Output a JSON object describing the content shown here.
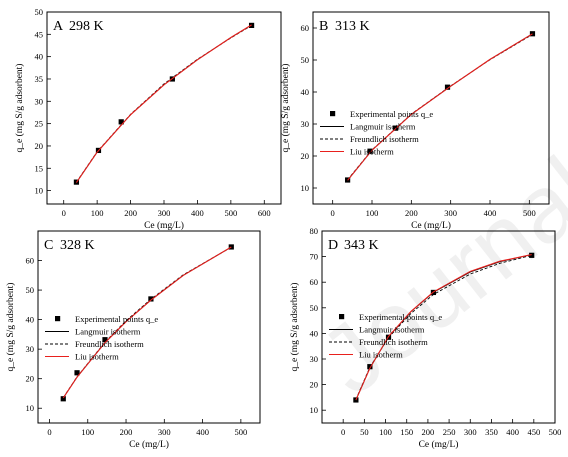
{
  "watermark": "Journal Pre-proof",
  "colors": {
    "experimental": "#000000",
    "langmuir": "#000000",
    "freundlich": "#000000",
    "liu": "#e8201d"
  },
  "chart_data": [
    {
      "type": "scatter",
      "panel_label": "A",
      "title": "298 K",
      "xlabel": "Ce (mg/L)",
      "ylabel": "q_e (mg S/g adsorbent)",
      "xlim": [
        -50,
        650
      ],
      "ylim": [
        7,
        50
      ],
      "xticks": [
        0,
        100,
        200,
        300,
        400,
        500,
        600
      ],
      "yticks": [
        10,
        15,
        20,
        25,
        30,
        35,
        40,
        45,
        50
      ],
      "legend": "none",
      "series": [
        {
          "name": "Experimental points q_e",
          "style": "points",
          "x": [
            38,
            104,
            172,
            325,
            562
          ],
          "y": [
            11.9,
            19.0,
            25.4,
            35.0,
            47.0
          ]
        },
        {
          "name": "Langmuir isotherm",
          "style": "solid",
          "x": [
            38,
            100,
            200,
            300,
            400,
            500,
            562
          ],
          "y": [
            11.8,
            18.6,
            27.0,
            33.7,
            39.3,
            44.3,
            47.1
          ]
        },
        {
          "name": "Freundlich isotherm",
          "style": "dashed",
          "x": [
            38,
            100,
            200,
            300,
            400,
            500,
            562
          ],
          "y": [
            11.9,
            18.7,
            27.1,
            33.9,
            39.4,
            44.2,
            47.0
          ]
        },
        {
          "name": "Liu isotherm",
          "style": "red",
          "x": [
            38,
            100,
            200,
            300,
            400,
            500,
            562
          ],
          "y": [
            11.8,
            18.6,
            27.0,
            33.7,
            39.3,
            44.3,
            47.1
          ]
        }
      ]
    },
    {
      "type": "scatter",
      "panel_label": "B",
      "title": "313 K",
      "xlabel": "Ce (mg/L)",
      "ylabel": "q_e (mg S/g adsorbent)",
      "xlim": [
        -50,
        550
      ],
      "ylim": [
        5,
        65
      ],
      "xticks": [
        0,
        100,
        200,
        300,
        400,
        500
      ],
      "yticks": [
        10,
        20,
        30,
        40,
        50,
        60
      ],
      "legend": "middle",
      "series": [
        {
          "name": "Experimental points q_e",
          "style": "points",
          "x": [
            38,
            95,
            160,
            292,
            508
          ],
          "y": [
            12.5,
            21.5,
            28.7,
            41.5,
            58.2
          ]
        },
        {
          "name": "Langmuir isotherm",
          "style": "solid",
          "x": [
            38,
            100,
            200,
            300,
            400,
            508
          ],
          "y": [
            12.4,
            21.8,
            33.0,
            41.8,
            50.2,
            58.2
          ]
        },
        {
          "name": "Freundlich isotherm",
          "style": "dashed",
          "x": [
            38,
            100,
            200,
            300,
            400,
            508
          ],
          "y": [
            12.6,
            21.9,
            33.1,
            41.9,
            50.1,
            58.0
          ]
        },
        {
          "name": "Liu isotherm",
          "style": "red",
          "x": [
            38,
            100,
            200,
            300,
            400,
            508
          ],
          "y": [
            12.4,
            21.8,
            33.0,
            41.8,
            50.2,
            58.2
          ]
        }
      ]
    },
    {
      "type": "scatter",
      "panel_label": "C",
      "title": "328 K",
      "xlabel": "Ce (mg/L)",
      "ylabel": "q_e (mg S/g adsorbent)",
      "xlim": [
        -30,
        550
      ],
      "ylim": [
        5,
        70
      ],
      "xticks": [
        0,
        100,
        200,
        300,
        400,
        500
      ],
      "yticks": [
        10,
        20,
        30,
        40,
        50,
        60
      ],
      "legend": "middle",
      "series": [
        {
          "name": "Experimental points q_e",
          "style": "points",
          "x": [
            36,
            72,
            145,
            265,
            475
          ],
          "y": [
            13.2,
            22.0,
            33.2,
            47.0,
            64.6
          ]
        },
        {
          "name": "Langmuir isotherm",
          "style": "solid",
          "x": [
            36,
            72,
            145,
            200,
            265,
            350,
            475
          ],
          "y": [
            13.5,
            20.5,
            32.2,
            39.3,
            46.6,
            55.0,
            64.6
          ]
        },
        {
          "name": "Freundlich isotherm",
          "style": "dashed",
          "x": [
            36,
            72,
            145,
            200,
            265,
            350,
            475
          ],
          "y": [
            13.6,
            20.6,
            32.4,
            39.6,
            46.9,
            55.2,
            64.5
          ]
        },
        {
          "name": "Liu isotherm",
          "style": "red",
          "x": [
            36,
            72,
            145,
            200,
            265,
            350,
            475
          ],
          "y": [
            13.5,
            20.5,
            32.2,
            39.3,
            46.6,
            55.0,
            64.6
          ]
        }
      ]
    },
    {
      "type": "scatter",
      "panel_label": "D",
      "title": "343 K",
      "xlabel": "Ce (mg/L)",
      "ylabel": "q_e (mg S/g adsorbent)",
      "xlim": [
        -50,
        500
      ],
      "ylim": [
        5,
        80
      ],
      "xticks": [
        0,
        50,
        100,
        150,
        200,
        250,
        300,
        350,
        400,
        450,
        500
      ],
      "yticks": [
        10,
        20,
        30,
        40,
        50,
        60,
        70,
        80
      ],
      "legend": "middle",
      "series": [
        {
          "name": "Experimental points q_e",
          "style": "points",
          "x": [
            30,
            63,
            107,
            213,
            445
          ],
          "y": [
            14.0,
            27.0,
            38.5,
            56.0,
            70.5
          ]
        },
        {
          "name": "Langmuir isotherm",
          "style": "solid",
          "x": [
            30,
            63,
            107,
            160,
            213,
            300,
            370,
            445
          ],
          "y": [
            14.0,
            26.5,
            38.6,
            48.5,
            56.0,
            64.0,
            68.0,
            70.8
          ]
        },
        {
          "name": "Freundlich isotherm",
          "style": "dashed",
          "x": [
            30,
            63,
            107,
            160,
            213,
            300,
            370,
            445
          ],
          "y": [
            14.2,
            26.8,
            38.4,
            47.8,
            55.2,
            63.2,
            67.4,
            70.5
          ]
        },
        {
          "name": "Liu isotherm",
          "style": "red",
          "x": [
            30,
            63,
            107,
            160,
            213,
            300,
            370,
            445
          ],
          "y": [
            14.0,
            26.4,
            38.8,
            48.6,
            56.2,
            64.2,
            68.2,
            70.8
          ]
        }
      ]
    }
  ]
}
